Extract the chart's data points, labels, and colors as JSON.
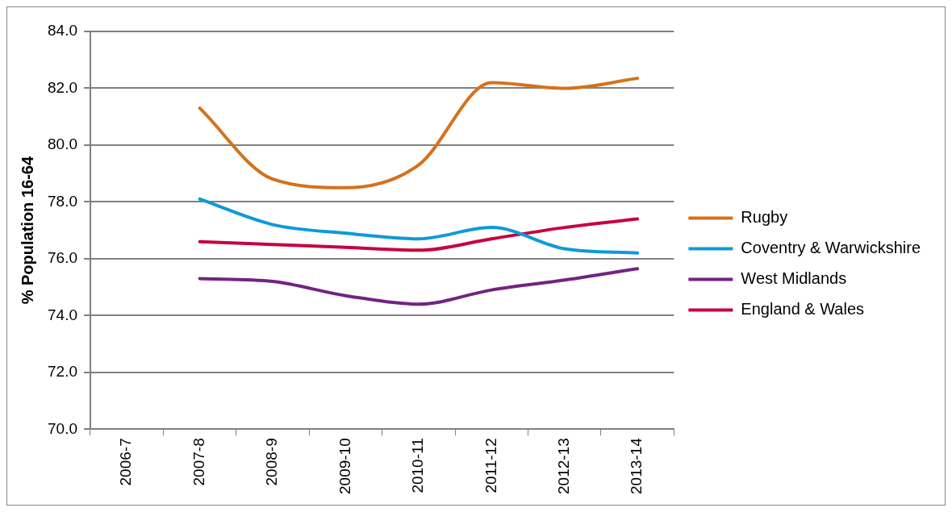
{
  "chart_data": {
    "type": "line",
    "ylabel": "% Population 16-64",
    "categories": [
      "2006-7",
      "2007-8",
      "2008-9",
      "2009-10",
      "2010-11",
      "2011-12",
      "2012-13",
      "2013-14"
    ],
    "series": [
      {
        "name": "Rugby",
        "color": "#d5711b",
        "values": [
          null,
          81.3,
          78.8,
          78.5,
          79.3,
          82.2,
          82.0,
          82.35
        ]
      },
      {
        "name": "Coventry & Warwickshire",
        "color": "#0d9ad8",
        "values": [
          null,
          78.1,
          77.2,
          76.9,
          76.7,
          77.1,
          76.35,
          76.2
        ]
      },
      {
        "name": "West Midlands",
        "color": "#722383",
        "values": [
          null,
          75.3,
          75.2,
          74.7,
          74.4,
          74.9,
          75.25,
          75.65
        ]
      },
      {
        "name": "England & Wales",
        "color": "#c7013f",
        "values": [
          null,
          76.6,
          76.5,
          76.4,
          76.3,
          76.7,
          77.1,
          77.4
        ]
      }
    ],
    "ylim": [
      70,
      84
    ],
    "yticks": [
      {
        "value": 70,
        "label": "70.0"
      },
      {
        "value": 72,
        "label": "72.0"
      },
      {
        "value": 74,
        "label": "74.0"
      },
      {
        "value": 76,
        "label": "76.0"
      },
      {
        "value": 78,
        "label": "78.0"
      },
      {
        "value": 80,
        "label": "80.0"
      },
      {
        "value": 82,
        "label": "82.0"
      },
      {
        "value": 84,
        "label": "84.0"
      }
    ],
    "grid": "y",
    "legend": "right",
    "marker": "none",
    "line_style": "solid"
  }
}
